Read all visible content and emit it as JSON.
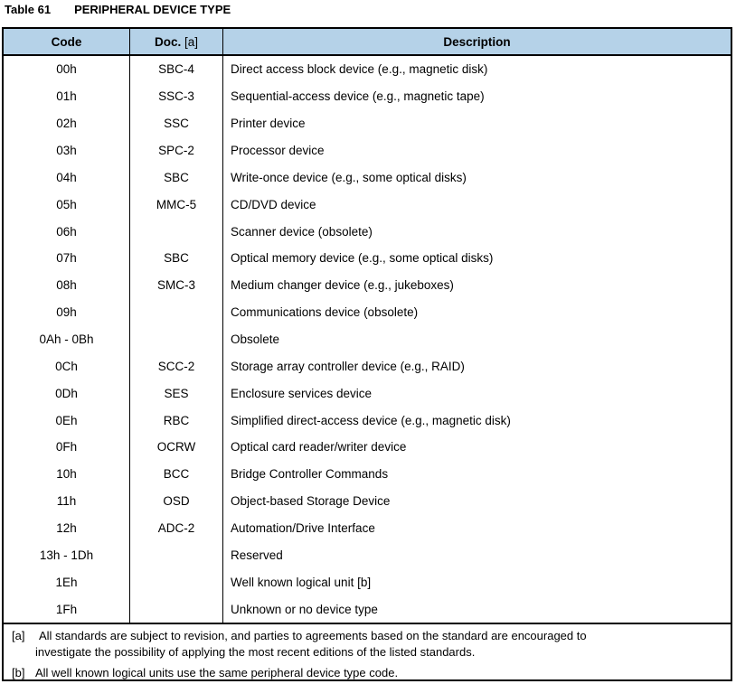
{
  "title": {
    "table_number": "Table 61",
    "table_title": "PERIPHERAL DEVICE TYPE"
  },
  "colors": {
    "header_bg": "#B5D2E8",
    "border": "#000000"
  },
  "table": {
    "headers": [
      {
        "bold": "Code",
        "rest": ""
      },
      {
        "bold": "Doc.",
        "rest": " [a]"
      },
      {
        "bold": "Description",
        "rest": ""
      }
    ],
    "rows": [
      {
        "code": "00h",
        "doc": "SBC-4",
        "description": "Direct access block device (e.g., magnetic disk)"
      },
      {
        "code": "01h",
        "doc": "SSC-3",
        "description": "Sequential-access device (e.g., magnetic tape)"
      },
      {
        "code": "02h",
        "doc": "SSC",
        "description": "Printer device"
      },
      {
        "code": "03h",
        "doc": "SPC-2",
        "description": "Processor device"
      },
      {
        "code": "04h",
        "doc": "SBC",
        "description": "Write-once device (e.g., some optical disks)"
      },
      {
        "code": "05h",
        "doc": "MMC-5",
        "description": "CD/DVD device"
      },
      {
        "code": "06h",
        "doc": "",
        "description": "Scanner device (obsolete)"
      },
      {
        "code": "07h",
        "doc": "SBC",
        "description": "Optical memory device (e.g., some optical disks)"
      },
      {
        "code": "08h",
        "doc": "SMC-3",
        "description": "Medium changer device (e.g., jukeboxes)"
      },
      {
        "code": "09h",
        "doc": "",
        "description": "Communications device (obsolete)"
      },
      {
        "code": "0Ah - 0Bh",
        "doc": "",
        "description": "Obsolete"
      },
      {
        "code": "0Ch",
        "doc": "SCC-2",
        "description": "Storage array controller device (e.g., RAID)"
      },
      {
        "code": "0Dh",
        "doc": "SES",
        "description": "Enclosure services device"
      },
      {
        "code": "0Eh",
        "doc": "RBC",
        "description": "Simplified direct-access device (e.g., magnetic disk)"
      },
      {
        "code": "0Fh",
        "doc": "OCRW",
        "description": "Optical card reader/writer device"
      },
      {
        "code": "10h",
        "doc": "BCC",
        "description": "Bridge Controller Commands"
      },
      {
        "code": "11h",
        "doc": "OSD",
        "description": "Object-based Storage Device"
      },
      {
        "code": "12h",
        "doc": "ADC-2",
        "description": "Automation/Drive Interface"
      },
      {
        "code": "13h - 1Dh",
        "doc": "",
        "description": "Reserved"
      },
      {
        "code": "1Eh",
        "doc": "",
        "description": "Well known logical unit [b]"
      },
      {
        "code": "1Fh",
        "doc": "",
        "description": "Unknown or no device type"
      }
    ]
  },
  "footnotes": [
    {
      "label": "[a]",
      "text": "All standards are subject to revision, and parties to agreements based on the standard are encouraged to investigate the possibility of applying the most recent editions of the listed standards."
    },
    {
      "label": "[b]",
      "text": "All well known logical units use the same peripheral device type code."
    }
  ]
}
